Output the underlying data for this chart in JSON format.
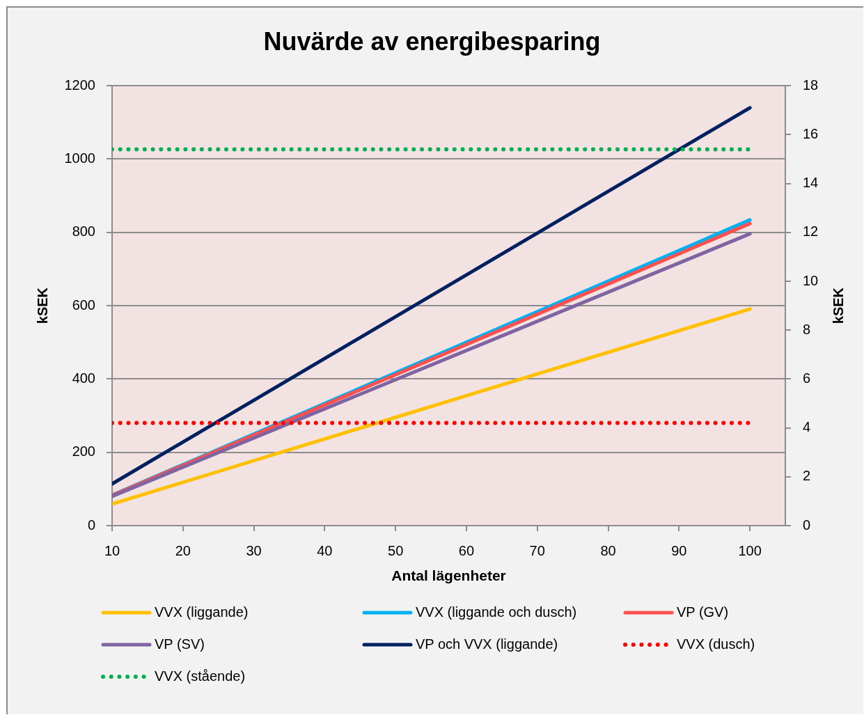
{
  "chart_data": {
    "type": "line",
    "title": "Nuvärde av energibesparing",
    "xlabel": "Antal lägenheter",
    "ylabel": "kSEK",
    "y2label": "kSEK",
    "x": [
      10,
      100
    ],
    "series": [
      {
        "name": "VVX (liggande)",
        "color": "#ffc000",
        "values": [
          59,
          591
        ]
      },
      {
        "name": "VVX (liggande och dusch)",
        "color": "#00b0f0",
        "values": [
          83,
          834
        ]
      },
      {
        "name": "VP (GV)",
        "color": "#ff4f4f",
        "values": [
          82,
          824
        ]
      },
      {
        "name": "VP (SV)",
        "color": "#8064a2",
        "values": [
          80,
          796
        ]
      },
      {
        "name": "VP och VVX (liggande)",
        "color": "#002060",
        "values": [
          114,
          1140
        ]
      },
      {
        "name": "VVX (dusch)",
        "color": "#ff0000",
        "axis": "y2",
        "line_style": "dotted",
        "values": [
          4.2,
          4.2
        ]
      },
      {
        "name": "VVX (stående)",
        "color": "#00b050",
        "axis": "y2",
        "line_style": "dotted",
        "values": [
          15.4,
          15.4
        ]
      }
    ],
    "xlim": [
      10,
      105
    ],
    "xticks": [
      10,
      20,
      30,
      40,
      50,
      60,
      70,
      80,
      90,
      100
    ],
    "ylim": [
      0,
      1200
    ],
    "yticks": [
      0,
      200,
      400,
      600,
      800,
      1000,
      1200
    ],
    "y2lim": [
      0,
      18
    ],
    "y2ticks": [
      0,
      2,
      4,
      6,
      8,
      10,
      12,
      14,
      16,
      18
    ],
    "grid": "y",
    "legend": "bottom",
    "marker": "none",
    "line_style": "solid"
  }
}
